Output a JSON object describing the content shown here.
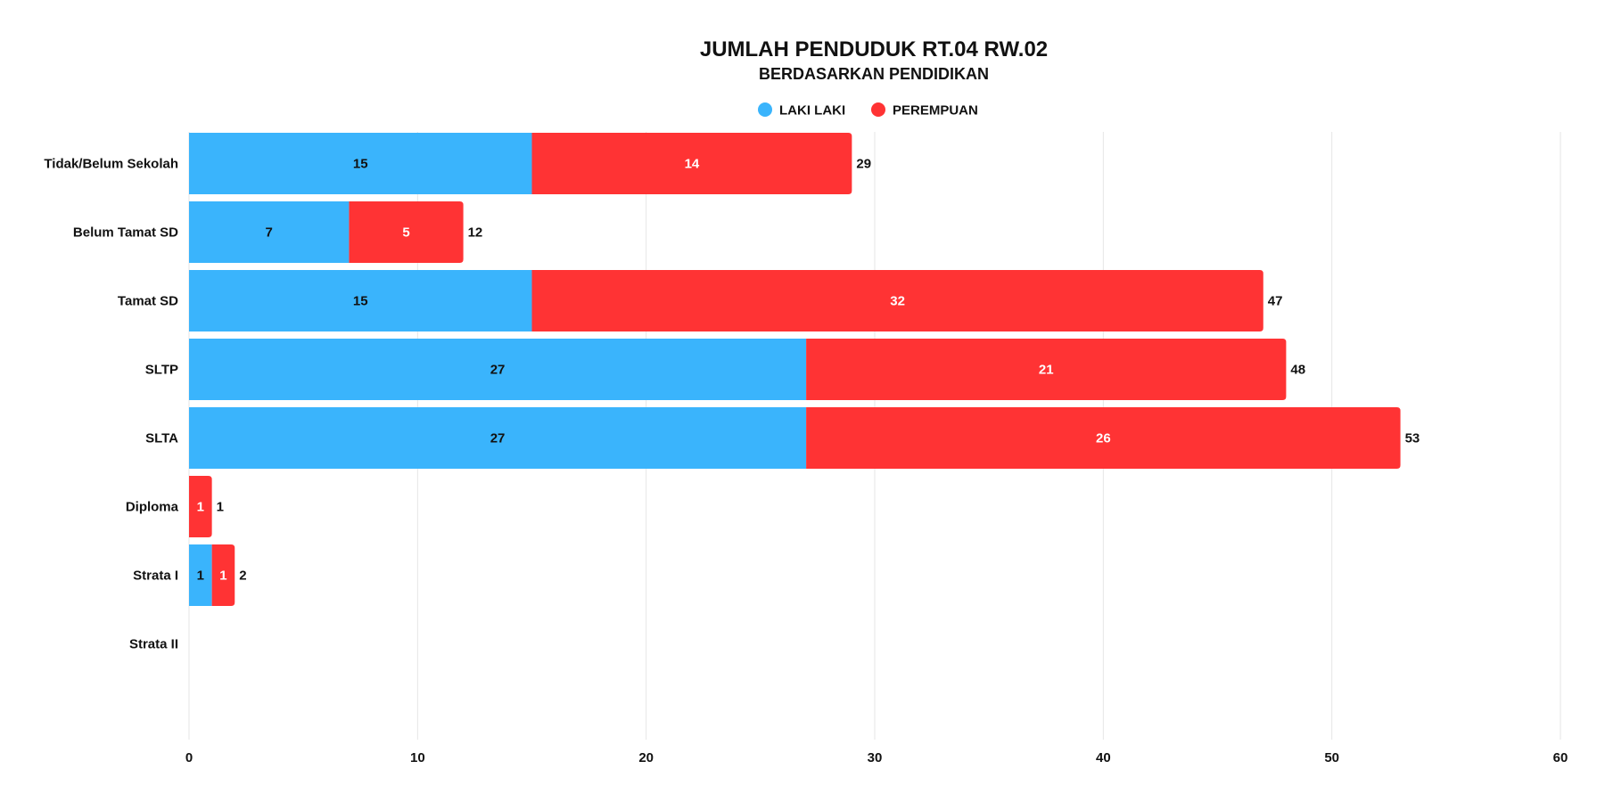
{
  "chart_data": {
    "type": "bar",
    "orientation": "horizontal",
    "stacked": true,
    "title": "JUMLAH PENDUDUK RT.04 RW.02",
    "subtitle": "BERDASARKAN PENDIDIKAN",
    "xlabel": "",
    "ylabel": "",
    "xlim": [
      0,
      60
    ],
    "x_ticks": [
      0,
      10,
      20,
      30,
      40,
      50,
      60
    ],
    "grid": true,
    "legend_position": "top-center",
    "categories": [
      "Tidak/Belum Sekolah",
      "Belum Tamat SD",
      "Tamat SD",
      "SLTP",
      "SLTA",
      "Diploma",
      "Strata I",
      "Strata II"
    ],
    "series": [
      {
        "name": "LAKI LAKI",
        "color": "#3ab4fc",
        "label_color": "#111111",
        "values": [
          15,
          7,
          15,
          27,
          27,
          0,
          1,
          0
        ]
      },
      {
        "name": "PEREMPUAN",
        "color": "#ff3334",
        "label_color": "#ffffff",
        "values": [
          14,
          5,
          32,
          21,
          26,
          1,
          1,
          0
        ]
      }
    ],
    "totals": [
      29,
      12,
      47,
      48,
      53,
      1,
      2,
      null
    ]
  }
}
